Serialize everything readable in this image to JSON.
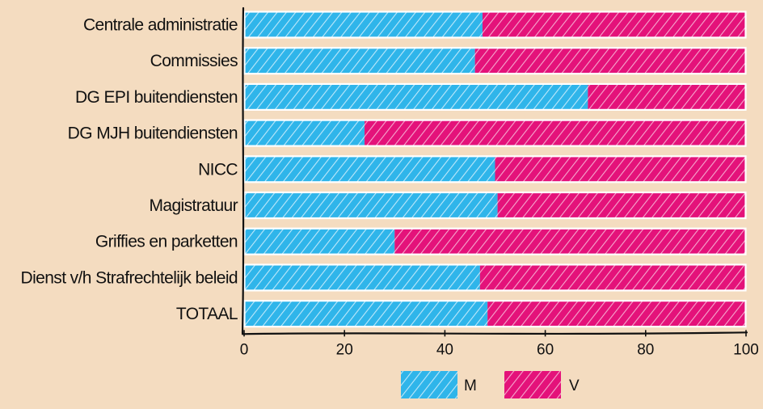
{
  "chart_data": {
    "type": "bar",
    "orientation": "horizontal",
    "stacked": true,
    "categories": [
      "Centrale administratie",
      "Commissies",
      "DG EPI buitendiensten",
      "DG MJH buitendiensten",
      "NICC",
      "Magistratuur",
      "Griffies en parketten",
      "Dienst v/h Strafrechtelijk beleid",
      "TOTAAL"
    ],
    "series": [
      {
        "name": "M",
        "color": "#2fb5ea",
        "values": [
          47.5,
          46,
          68.5,
          24,
          50,
          50.5,
          30,
          47,
          48.5
        ]
      },
      {
        "name": "V",
        "color": "#e4127a",
        "values": [
          52.5,
          54,
          31.5,
          76,
          50,
          49.5,
          70,
          53,
          51.5
        ]
      }
    ],
    "xlim": [
      0,
      100
    ],
    "xticks": [
      "0",
      "20",
      "40",
      "60",
      "80",
      "100"
    ],
    "grid": false,
    "legend": {
      "position": "bottom"
    },
    "style": "hand-drawn hatched fill",
    "background": "#f4dcc0"
  }
}
